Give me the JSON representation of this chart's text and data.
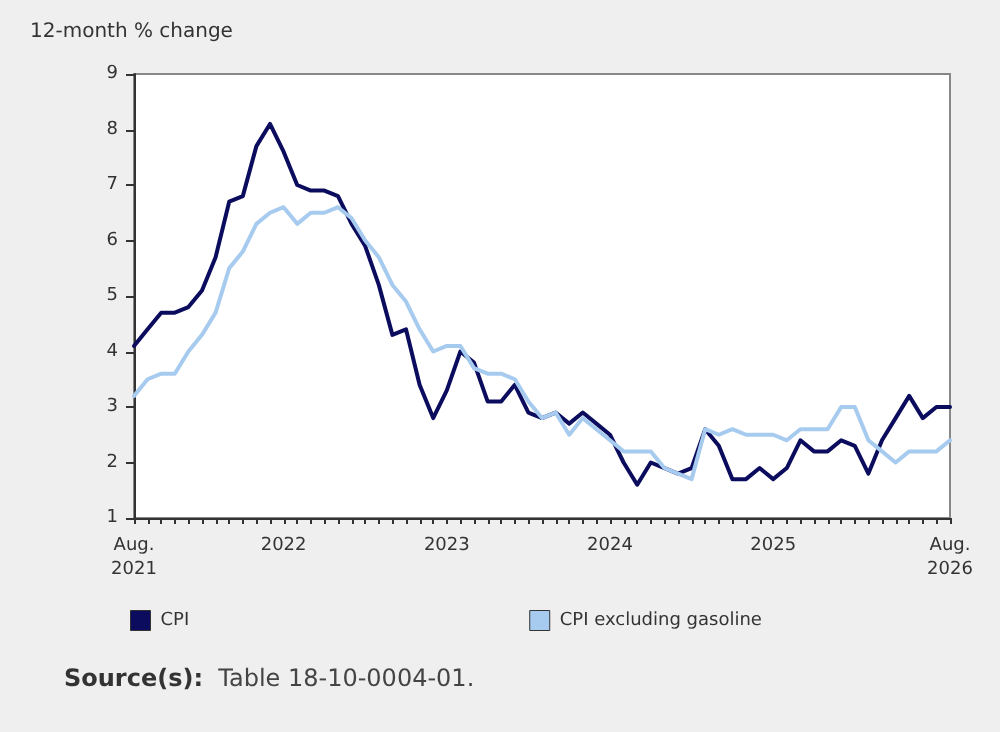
{
  "chart_data": {
    "type": "line",
    "ylabel": "12-month % change",
    "categories": [
      "Aug.\n2021",
      null,
      null,
      null,
      null,
      null,
      null,
      null,
      null,
      null,
      null,
      "2022",
      null,
      null,
      null,
      null,
      null,
      null,
      null,
      null,
      null,
      null,
      null,
      "2023",
      null,
      null,
      null,
      null,
      null,
      null,
      null,
      null,
      null,
      null,
      null,
      "2024",
      null,
      null,
      null,
      null,
      null,
      null,
      null,
      null,
      null,
      null,
      null,
      "2025",
      null,
      null,
      null,
      null,
      null,
      null,
      null,
      null,
      null,
      null,
      null,
      null,
      "Aug.\n2026"
    ],
    "series": [
      {
        "name": "CPI",
        "color": "#0c0c5e",
        "values": [
          4.1,
          4.4,
          4.7,
          4.7,
          4.8,
          5.1,
          5.7,
          6.7,
          6.8,
          7.7,
          8.1,
          7.6,
          7.0,
          6.9,
          6.9,
          6.8,
          6.3,
          5.9,
          5.2,
          4.3,
          4.4,
          3.4,
          2.8,
          3.3,
          4.0,
          3.8,
          3.1,
          3.1,
          3.4,
          2.9,
          2.8,
          2.9,
          2.7,
          2.9,
          2.7,
          2.5,
          2.0,
          1.6,
          2.0,
          1.9,
          1.8,
          1.9,
          2.6,
          2.3,
          1.7,
          1.7,
          1.9,
          1.7,
          1.9,
          2.4,
          2.2,
          2.2,
          2.4,
          2.3,
          1.8,
          2.4,
          2.8,
          3.2,
          2.8,
          3.0,
          3.0
        ]
      },
      {
        "name": "CPI excluding gasoline",
        "color": "#a6cbee",
        "values": [
          3.2,
          3.5,
          3.6,
          3.6,
          4.0,
          4.3,
          4.7,
          5.5,
          5.8,
          6.3,
          6.5,
          6.6,
          6.3,
          6.5,
          6.5,
          6.6,
          6.4,
          6.0,
          5.7,
          5.2,
          4.9,
          4.4,
          4.0,
          4.1,
          4.1,
          3.7,
          3.6,
          3.6,
          3.5,
          3.1,
          2.8,
          2.9,
          2.5,
          2.8,
          2.6,
          2.4,
          2.2,
          2.2,
          2.2,
          1.9,
          1.8,
          1.7,
          2.6,
          2.5,
          2.6,
          2.5,
          2.5,
          2.5,
          2.4,
          2.6,
          2.6,
          2.6,
          3.0,
          3.0,
          2.4,
          2.2,
          2.0,
          2.2,
          2.2,
          2.2,
          2.4
        ]
      }
    ],
    "ylim": [
      1,
      9
    ],
    "yticks": [
      1,
      2,
      3,
      4,
      5,
      6,
      7,
      8,
      9
    ],
    "grid": false,
    "legend": "bottom",
    "marker": "none",
    "line_style": "solid",
    "annotations": [
      "Source(s): Table 18-10-0004-01."
    ]
  }
}
